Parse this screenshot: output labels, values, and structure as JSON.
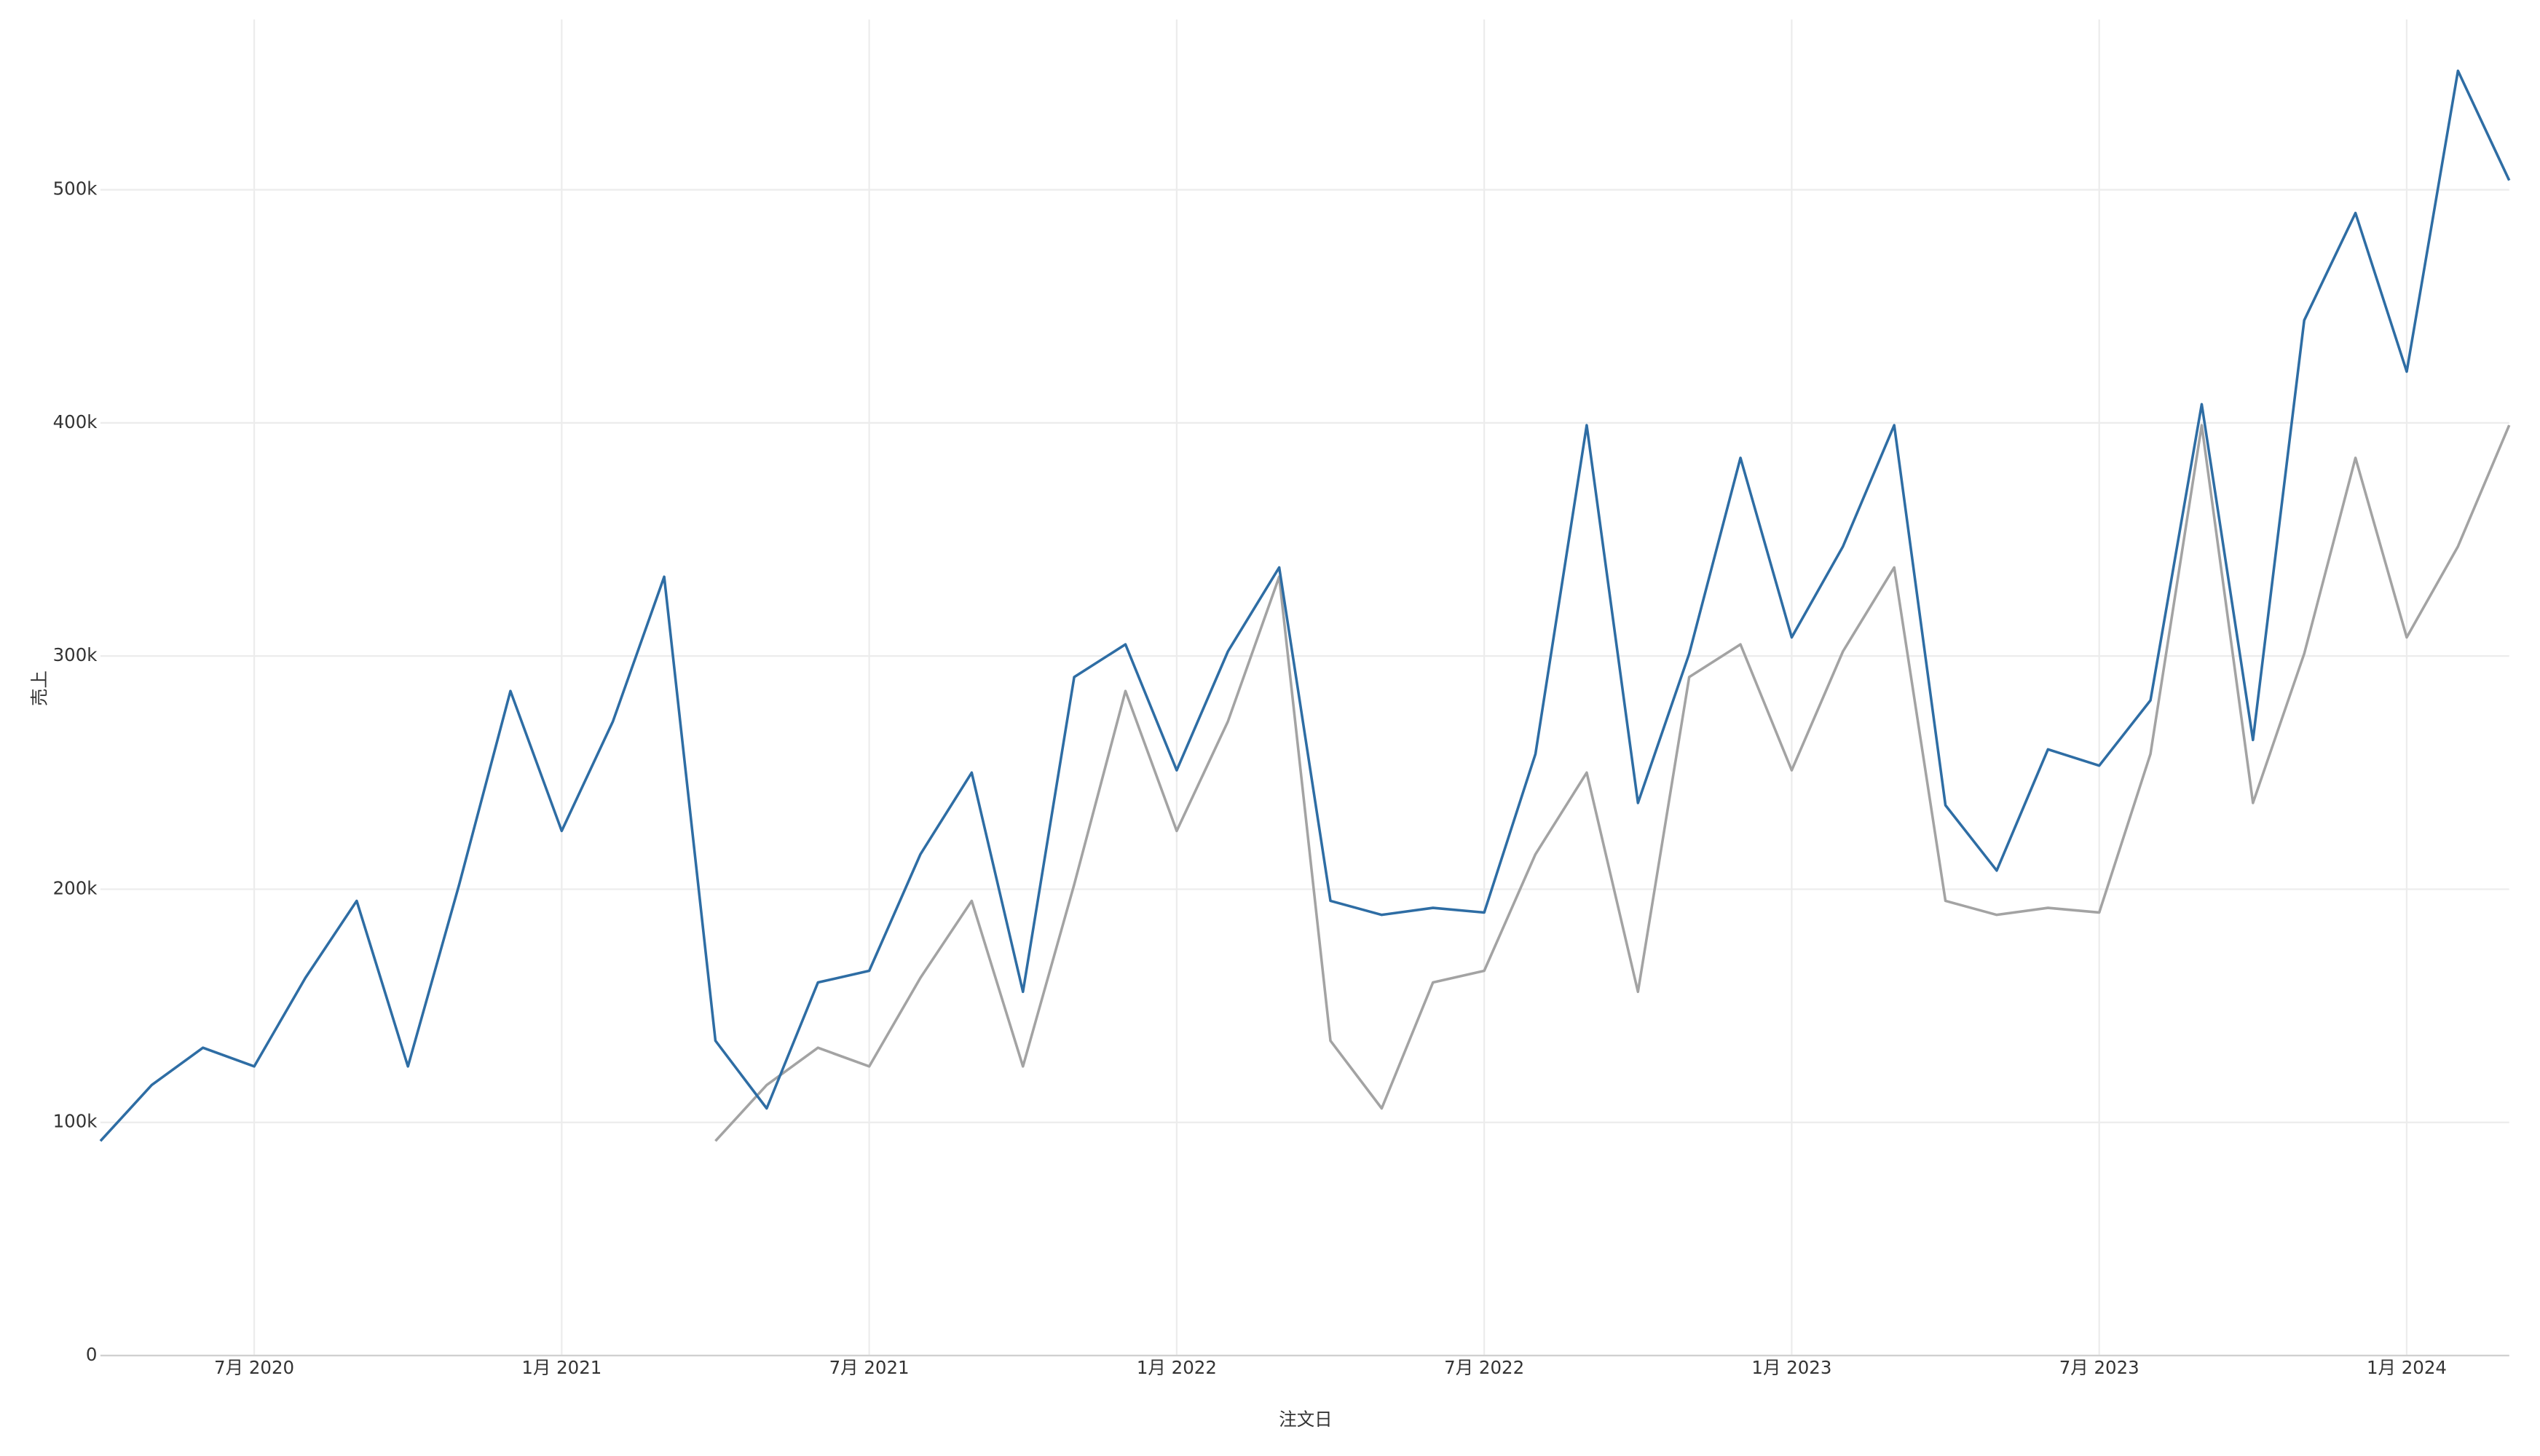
{
  "chart_data": {
    "type": "line",
    "x_label": "注文日",
    "y_label": "売上",
    "x": [
      "2020-04",
      "2020-05",
      "2020-06",
      "2020-07",
      "2020-08",
      "2020-09",
      "2020-10",
      "2020-11",
      "2020-12",
      "2021-01",
      "2021-02",
      "2021-03",
      "2021-04",
      "2021-05",
      "2021-06",
      "2021-07",
      "2021-08",
      "2021-09",
      "2021-10",
      "2021-11",
      "2021-12",
      "2022-01",
      "2022-02",
      "2022-03",
      "2022-04",
      "2022-05",
      "2022-06",
      "2022-07",
      "2022-08",
      "2022-09",
      "2022-10",
      "2022-11",
      "2022-12",
      "2023-01",
      "2023-02",
      "2023-03",
      "2023-04",
      "2023-05",
      "2023-06",
      "2023-07",
      "2023-08",
      "2023-09",
      "2023-10",
      "2023-11",
      "2023-12",
      "2024-01",
      "2024-02",
      "2024-03"
    ],
    "xlim": [
      "2020-04",
      "2024-03"
    ],
    "xticks": [
      {
        "value": "2020-07",
        "label": "7月 2020"
      },
      {
        "value": "2021-01",
        "label": "1月 2021"
      },
      {
        "value": "2021-07",
        "label": "7月 2021"
      },
      {
        "value": "2022-01",
        "label": "1月 2022"
      },
      {
        "value": "2022-07",
        "label": "7月 2022"
      },
      {
        "value": "2023-01",
        "label": "1月 2023"
      },
      {
        "value": "2023-07",
        "label": "7月 2023"
      },
      {
        "value": "2024-01",
        "label": "1月 2024"
      }
    ],
    "ylim": [
      0,
      573000
    ],
    "yticks": [
      0,
      {
        "value": 100000,
        "label": "100k"
      },
      {
        "value": 200000,
        "label": "200k"
      },
      {
        "value": 300000,
        "label": "300k"
      },
      {
        "value": 400000,
        "label": "400k"
      },
      {
        "value": 500000,
        "label": "500k"
      }
    ],
    "grid": true,
    "series": [
      {
        "color": "#2e6da4",
        "values": [
          92000,
          116000,
          132000,
          124000,
          162000,
          195000,
          124000,
          202000,
          285000,
          225000,
          272000,
          334000,
          135000,
          106000,
          160000,
          165000,
          215000,
          250000,
          156000,
          291000,
          305000,
          251000,
          302000,
          338000,
          195000,
          189000,
          192000,
          190000,
          258000,
          399000,
          237000,
          301000,
          385000,
          308000,
          347000,
          399000,
          236000,
          208000,
          260000,
          253000,
          281000,
          408000,
          264000,
          444000,
          490000,
          422000,
          551000,
          504000
        ]
      },
      {
        "color": "#a3a3a3",
        "values": [
          null,
          null,
          null,
          null,
          null,
          null,
          null,
          null,
          null,
          null,
          null,
          null,
          92000,
          116000,
          132000,
          124000,
          162000,
          195000,
          124000,
          202000,
          285000,
          225000,
          272000,
          334000,
          135000,
          106000,
          160000,
          165000,
          215000,
          250000,
          156000,
          291000,
          305000,
          251000,
          302000,
          338000,
          195000,
          189000,
          192000,
          190000,
          258000,
          399000,
          237000,
          301000,
          385000,
          308000,
          347000,
          399000
        ]
      }
    ]
  }
}
